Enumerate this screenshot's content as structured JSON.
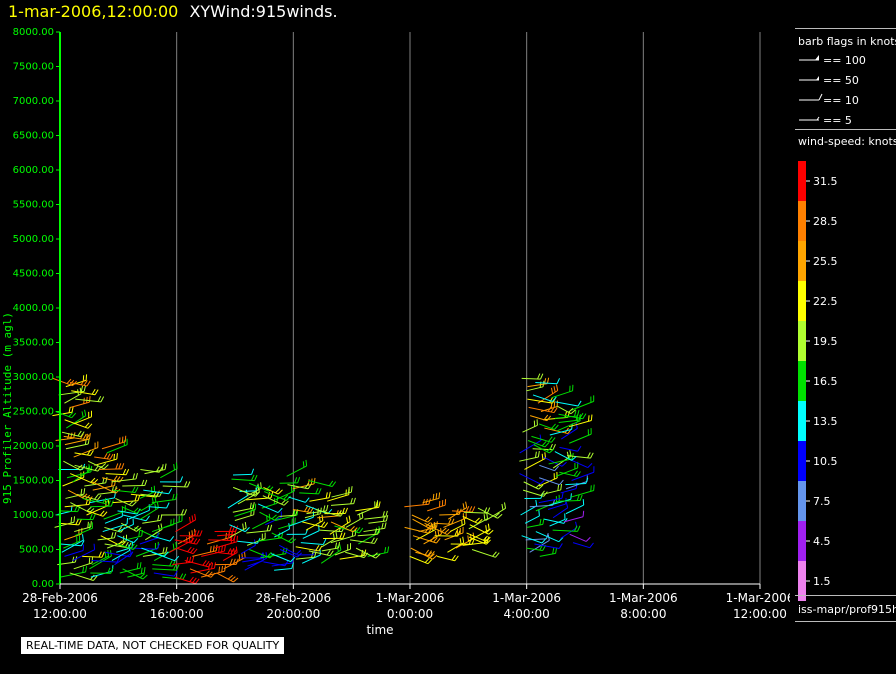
{
  "header": {
    "date": "1-mar-2006,12:00:00",
    "title": "XYWind:915winds."
  },
  "legend": {
    "barb_title": "barb flags in knots",
    "barb_flags": [
      {
        "label": "== 100",
        "kind": "pennant"
      },
      {
        "label": "== 50",
        "kind": "pennant-small"
      },
      {
        "label": "== 10",
        "kind": "full-barb"
      },
      {
        "label": "== 5",
        "kind": "half-barb"
      }
    ],
    "speed_title": "wind-speed: knots",
    "color_scale": [
      {
        "label": "31.5",
        "color": "#ff0000"
      },
      {
        "label": "28.5",
        "color": "#ff8000"
      },
      {
        "label": "25.5",
        "color": "#ffa500"
      },
      {
        "label": "22.5",
        "color": "#ffff00"
      },
      {
        "label": "19.5",
        "color": "#b0ff30"
      },
      {
        "label": "16.5",
        "color": "#00e000"
      },
      {
        "label": "13.5",
        "color": "#00ffff"
      },
      {
        "label": "10.5",
        "color": "#0000ff"
      },
      {
        "label": "7.5",
        "color": "#6495ed"
      },
      {
        "label": "4.5",
        "color": "#a020f0"
      },
      {
        "label": "1.5",
        "color": "#ee82ee"
      }
    ],
    "source": "iss-mapr/prof915h"
  },
  "footer_note": "REAL-TIME DATA, NOT CHECKED FOR QUALITY",
  "colors": {
    "axis": "#00ff00",
    "axis_labels": "#ffffff",
    "grid": "#808080",
    "background": "#000000"
  },
  "chart_data": {
    "type": "scatter",
    "title": "XYWind:915winds.",
    "xlabel": "time",
    "ylabel": "915 Profiler Altitude (m agl)",
    "ylim": [
      0,
      8000
    ],
    "xlim": [
      "2006-02-28 12:00",
      "2006-03-01 12:00"
    ],
    "yticks": [
      "0.00",
      "500.00",
      "1000.00",
      "1500.00",
      "2000.00",
      "2500.00",
      "3000.00",
      "3500.00",
      "4000.00",
      "4500.00",
      "5000.00",
      "5500.00",
      "6000.00",
      "6500.00",
      "7000.00",
      "7500.00",
      "8000.00"
    ],
    "xticks": [
      {
        "date": "28-Feb-2006",
        "time": "12:00:00"
      },
      {
        "date": "28-Feb-2006",
        "time": "16:00:00"
      },
      {
        "date": "28-Feb-2006",
        "time": "20:00:00"
      },
      {
        "date": "1-Mar-2006",
        "time": "0:00:00"
      },
      {
        "date": "1-Mar-2006",
        "time": "4:00:00"
      },
      {
        "date": "1-Mar-2006",
        "time": "8:00:00"
      },
      {
        "date": "1-Mar-2006",
        "time": "12:00:00"
      }
    ],
    "grid": true,
    "legend_position": "right",
    "observations": [
      {
        "time": "2006-02-28 12:00",
        "altitudes": [
          100,
          3000
        ],
        "speed_range": [
          8,
          33
        ]
      },
      {
        "time": "2006-02-28 13:00",
        "altitudes": [
          100,
          2000
        ],
        "speed_range": [
          8,
          30
        ]
      },
      {
        "time": "2006-02-28 14:00",
        "altitudes": [
          100,
          1500
        ],
        "speed_range": [
          8,
          24
        ]
      },
      {
        "time": "2006-02-28 15:00",
        "altitudes": [
          100,
          1700
        ],
        "speed_range": [
          8,
          24
        ]
      },
      {
        "time": "2006-02-28 16:00",
        "altitudes": [
          100,
          800
        ],
        "speed_range": [
          28,
          33
        ]
      },
      {
        "time": "2006-02-28 17:00",
        "altitudes": [
          100,
          800
        ],
        "speed_range": [
          28,
          33
        ]
      },
      {
        "time": "2006-02-28 18:00",
        "altitudes": [
          200,
          1600
        ],
        "speed_range": [
          8,
          24
        ]
      },
      {
        "time": "2006-02-28 19:00",
        "altitudes": [
          200,
          1500
        ],
        "speed_range": [
          8,
          24
        ]
      },
      {
        "time": "2006-02-28 20:00",
        "altitudes": [
          300,
          1600
        ],
        "speed_range": [
          8,
          30
        ]
      },
      {
        "time": "2006-02-28 21:00",
        "altitudes": [
          300,
          1300
        ],
        "speed_range": [
          14,
          27
        ]
      },
      {
        "time": "2006-02-28 22:00",
        "altitudes": [
          400,
          1100
        ],
        "speed_range": [
          16,
          22
        ]
      },
      {
        "time": "2006-03-01 00:00",
        "altitudes": [
          400,
          1200
        ],
        "speed_range": [
          22,
          30
        ]
      },
      {
        "time": "2006-03-01 01:00",
        "altitudes": [
          400,
          1100
        ],
        "speed_range": [
          20,
          28
        ]
      },
      {
        "time": "2006-03-01 02:00",
        "altitudes": [
          500,
          1100
        ],
        "speed_range": [
          18,
          24
        ]
      },
      {
        "time": "2006-03-01 04:00",
        "altitudes": [
          400,
          3000
        ],
        "speed_range": [
          2,
          30
        ]
      },
      {
        "time": "2006-03-01 05:00",
        "altitudes": [
          600,
          2700
        ],
        "speed_range": [
          2,
          24
        ]
      }
    ]
  }
}
